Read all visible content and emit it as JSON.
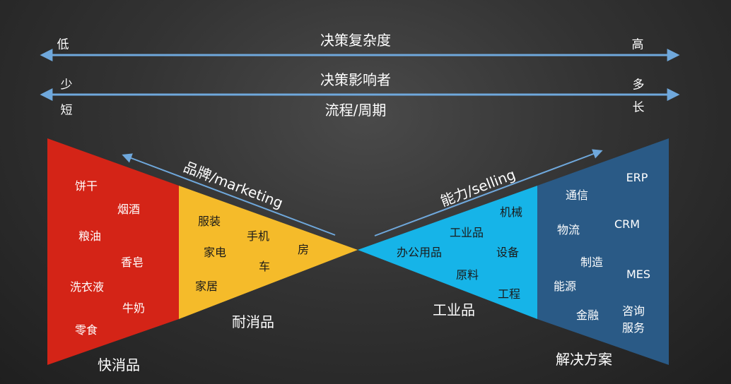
{
  "scales": {
    "complexity": {
      "label": "决策复杂度",
      "low": "低",
      "high": "高"
    },
    "influencers": {
      "label": "决策影响者",
      "low": "少",
      "high": "多"
    },
    "cycle": {
      "label": "流程/周期",
      "low": "短",
      "high": "长"
    }
  },
  "left_arrow_label": "品牌/marketing",
  "right_arrow_label": "能力/selling",
  "segments": {
    "fmcg": {
      "title": "快消品",
      "color": "#d42417",
      "items": [
        "饼干",
        "烟酒",
        "粮油",
        "香皂",
        "洗衣液",
        "牛奶",
        "零食"
      ]
    },
    "durables": {
      "title": "耐消品",
      "color": "#f5bb2a",
      "items": [
        "服装",
        "手机",
        "家电",
        "房",
        "车",
        "家居"
      ]
    },
    "industrial": {
      "title": "工业品",
      "color": "#16b4e8",
      "items": [
        "机械",
        "工业品",
        "办公用品",
        "设备",
        "原料",
        "工程"
      ]
    },
    "solutions": {
      "title": "解决方案",
      "color": "#2a5a86",
      "items": [
        "ERP",
        "通信",
        "CRM",
        "物流",
        "制造",
        "MES",
        "能源",
        "金融",
        "咨询",
        "服务"
      ]
    }
  }
}
